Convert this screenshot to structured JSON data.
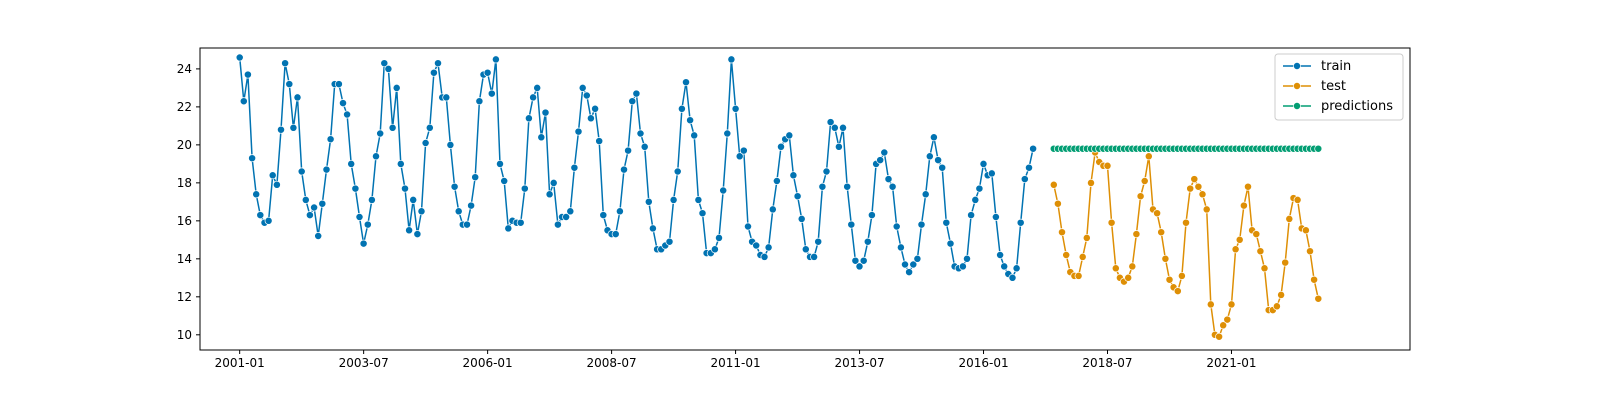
{
  "chart_data": {
    "type": "line",
    "title": "",
    "xlabel": "",
    "ylabel": "",
    "xlim": [
      2000.2,
      2024.6
    ],
    "ylim": [
      9.2,
      25.1
    ],
    "grid": false,
    "legend_position": "top-right",
    "x_ticks": [
      {
        "value": 2001.0,
        "label": "2001-01"
      },
      {
        "value": 2003.5,
        "label": "2003-07"
      },
      {
        "value": 2006.0,
        "label": "2006-01"
      },
      {
        "value": 2008.5,
        "label": "2008-07"
      },
      {
        "value": 2011.0,
        "label": "2011-01"
      },
      {
        "value": 2013.5,
        "label": "2013-07"
      },
      {
        "value": 2016.0,
        "label": "2016-01"
      },
      {
        "value": 2018.5,
        "label": "2018-07"
      },
      {
        "value": 2021.0,
        "label": "2021-01"
      }
    ],
    "y_ticks": [
      {
        "value": 10,
        "label": "10"
      },
      {
        "value": 12,
        "label": "12"
      },
      {
        "value": 14,
        "label": "14"
      },
      {
        "value": 16,
        "label": "16"
      },
      {
        "value": 18,
        "label": "18"
      },
      {
        "value": 20,
        "label": "20"
      },
      {
        "value": 22,
        "label": "22"
      },
      {
        "value": 24,
        "label": "24"
      }
    ],
    "series": [
      {
        "name": "train",
        "color": "#0173b2",
        "start": "2001-01",
        "step": "month",
        "values": [
          24.6,
          22.3,
          23.7,
          19.3,
          17.4,
          16.3,
          15.9,
          16.0,
          18.4,
          17.9,
          20.8,
          24.3,
          23.2,
          20.9,
          22.5,
          18.6,
          17.1,
          16.3,
          16.7,
          15.2,
          16.9,
          18.7,
          20.3,
          23.2,
          23.2,
          22.2,
          21.6,
          19.0,
          17.7,
          16.2,
          14.8,
          15.8,
          17.1,
          19.4,
          20.6,
          24.3,
          24.0,
          20.9,
          23.0,
          19.0,
          17.7,
          15.5,
          17.1,
          15.3,
          16.5,
          20.1,
          20.9,
          23.8,
          24.3,
          22.5,
          22.5,
          20.0,
          17.8,
          16.5,
          15.8,
          15.8,
          16.8,
          18.3,
          22.3,
          23.7,
          23.8,
          22.7,
          24.5,
          19.0,
          18.1,
          15.6,
          16.0,
          15.9,
          15.9,
          17.7,
          21.4,
          22.5,
          23.0,
          20.4,
          21.7,
          17.4,
          18.0,
          15.8,
          16.2,
          16.2,
          16.5,
          18.8,
          20.7,
          23.0,
          22.6,
          21.4,
          21.9,
          20.2,
          16.3,
          15.5,
          15.3,
          15.3,
          16.5,
          18.7,
          19.7,
          22.3,
          22.7,
          20.6,
          19.9,
          17.0,
          15.6,
          14.5,
          14.5,
          14.7,
          14.9,
          17.1,
          18.6,
          21.9,
          23.3,
          21.3,
          20.5,
          17.1,
          16.4,
          14.3,
          14.3,
          14.5,
          15.1,
          17.6,
          20.6,
          24.5,
          21.9,
          19.4,
          19.7,
          15.7,
          14.9,
          14.7,
          14.2,
          14.1,
          14.6,
          16.6,
          18.1,
          19.9,
          20.3,
          20.5,
          18.4,
          17.3,
          16.1,
          14.5,
          14.1,
          14.1,
          14.9,
          17.8,
          18.6,
          21.2,
          20.9,
          19.9,
          20.9,
          17.8,
          15.8,
          13.9,
          13.6,
          13.9,
          14.9,
          16.3,
          19.0,
          19.2,
          19.6,
          18.2,
          17.8,
          15.7,
          14.6,
          13.7,
          13.3,
          13.7,
          14.0,
          15.8,
          17.4,
          19.4,
          20.4,
          19.2,
          18.8,
          15.9,
          14.8,
          13.6,
          13.5,
          13.6,
          14.0,
          16.3,
          17.1,
          17.7,
          19.0,
          18.4,
          18.5,
          16.2,
          14.2,
          13.6,
          13.2,
          13.0,
          13.5,
          15.9,
          18.2,
          18.8,
          19.8
        ]
      },
      {
        "name": "test",
        "color": "#de8f05",
        "start": "2017-06",
        "step": "month",
        "values": [
          17.9,
          16.9,
          15.4,
          14.2,
          13.3,
          13.1,
          13.1,
          14.1,
          15.1,
          18.0,
          19.6,
          19.1,
          18.9,
          18.9,
          15.9,
          13.5,
          13.0,
          12.8,
          13.0,
          13.6,
          15.3,
          17.3,
          18.1,
          19.4,
          16.6,
          16.4,
          15.4,
          14.0,
          12.9,
          12.5,
          12.3,
          13.1,
          15.9,
          17.7,
          18.2,
          17.8,
          17.4,
          16.6,
          11.6,
          10.0,
          9.9,
          10.5,
          10.8,
          11.6,
          14.5,
          15.0,
          16.8,
          17.8,
          15.5,
          15.3,
          14.4,
          13.5,
          11.3,
          11.3,
          11.5,
          12.1,
          13.8,
          16.1,
          17.2,
          17.1,
          15.6,
          15.5,
          14.4,
          12.9,
          11.9
        ]
      },
      {
        "name": "predictions",
        "color": "#029e73",
        "start": "2017-06",
        "step": "month",
        "constant": 19.8,
        "count": 65
      }
    ]
  }
}
